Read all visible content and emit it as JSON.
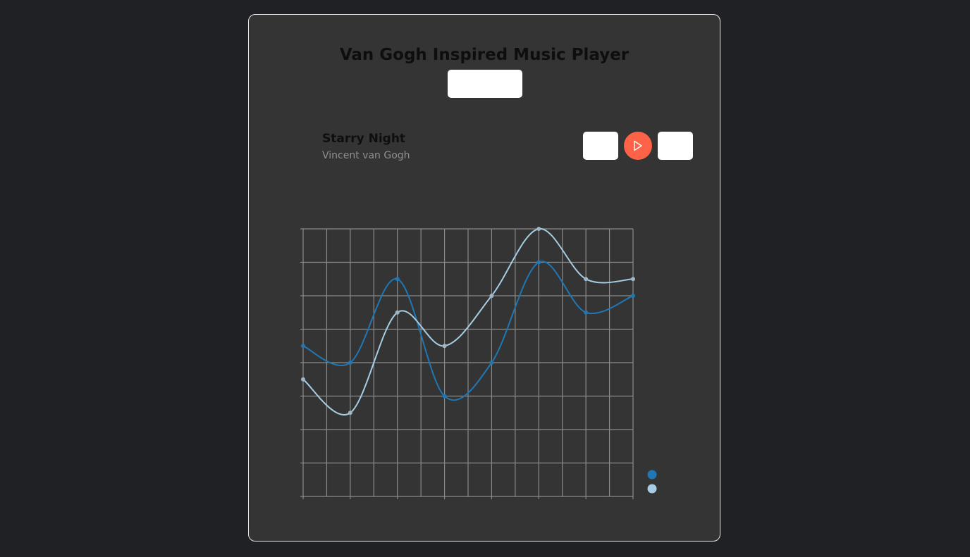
{
  "app": {
    "title": "Van Gogh Inspired Music Player"
  },
  "track": {
    "title": "Starry Night",
    "artist": "Vincent van Gogh"
  },
  "colors": {
    "accent": "#ff6347",
    "series_dark": "#1f77b4",
    "series_light": "#a6cde3",
    "panel": "#343434",
    "background": "#202125"
  },
  "icons": {
    "play": "play-icon"
  },
  "chart_data": {
    "type": "line",
    "x": [
      0,
      1,
      2,
      3,
      4,
      5,
      6,
      7
    ],
    "xlim": [
      0,
      7
    ],
    "ylim": [
      0,
      8
    ],
    "grid": true,
    "legend": "bottom-right",
    "series": [
      {
        "color": "#1f77b4",
        "values": [
          4.5,
          4.0,
          6.5,
          3.0,
          4.0,
          7.0,
          5.5,
          6.0
        ]
      },
      {
        "color": "#a6cde3",
        "values": [
          3.5,
          2.5,
          5.5,
          4.5,
          6.0,
          8.0,
          6.5,
          6.5
        ]
      }
    ]
  }
}
